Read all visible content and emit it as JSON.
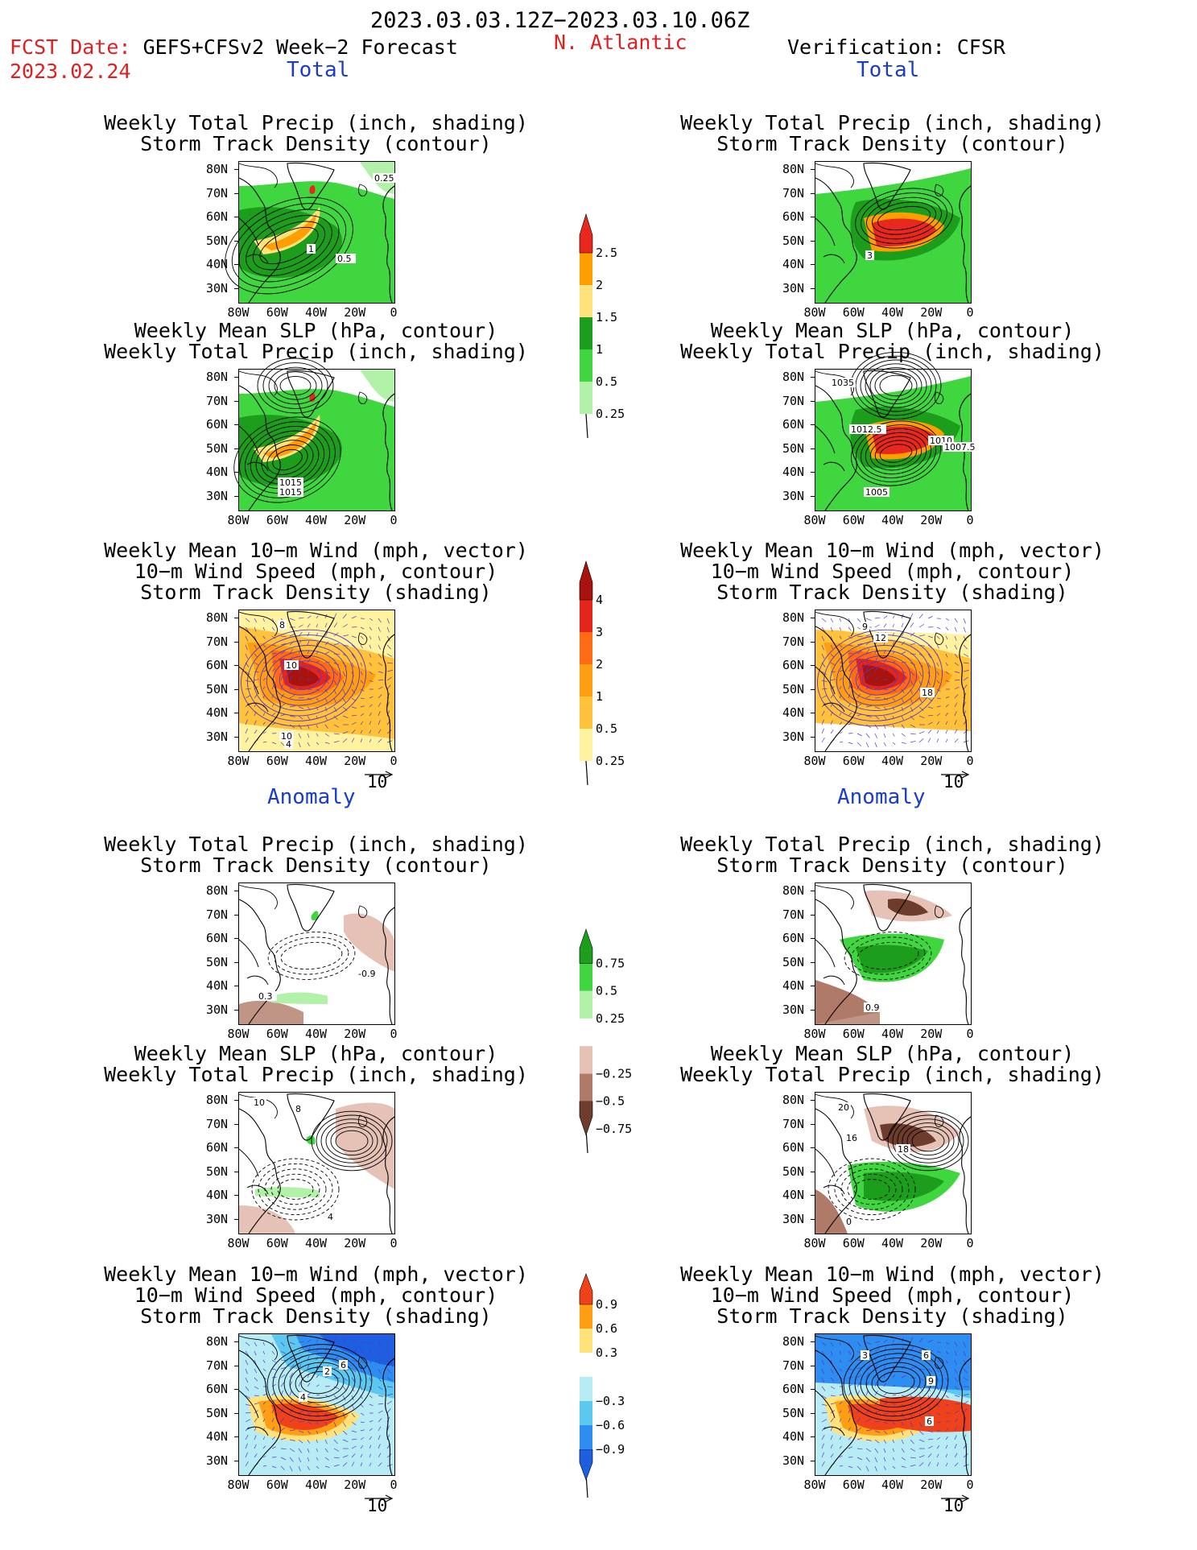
{
  "header": {
    "date_range": "2023.03.03.12Z−2023.03.10.06Z",
    "fcst_label": "FCST Date: ",
    "fcst_model": "GEFS+CFSv2 Week−2 Forecast",
    "fcst_date": "2023.02.24",
    "region": "N. Atlantic",
    "verification": "Verification: CFSR"
  },
  "sections": {
    "total": "Total",
    "anomaly": "Anomaly"
  },
  "titles": {
    "precip_track": [
      "Weekly Total Precip (inch, shading)",
      "Storm Track Density (contour)"
    ],
    "slp_precip": [
      "Weekly Mean SLP (hPa, contour)",
      "Weekly Total Precip (inch, shading)"
    ],
    "wind_track": [
      "Weekly Mean 10−m Wind (mph, vector)",
      "10−m Wind Speed (mph, contour)",
      "Storm Track Density (shading)"
    ]
  },
  "axes": {
    "lat": [
      "80N",
      "70N",
      "60N",
      "50N",
      "40N",
      "30N"
    ],
    "lon": [
      "80W",
      "60W",
      "40W",
      "20W",
      "0"
    ]
  },
  "vector_ref": "10",
  "colorbars": {
    "precip_total": {
      "labels": [
        "2.5",
        "2",
        "1.5",
        "1",
        "0.5",
        "0.25"
      ],
      "colors": [
        "#e8281e",
        "#ff9e00",
        "#ffe37a",
        "#1c9e1c",
        "#3fd63f",
        "#b2f2a8"
      ]
    },
    "track_total": {
      "labels": [
        "4",
        "3",
        "2",
        "1",
        "0.5",
        "0.25"
      ],
      "colors": [
        "#a8130e",
        "#e3251a",
        "#ff6a12",
        "#ff9e12",
        "#ffc23a",
        "#fff3a0"
      ]
    },
    "precip_anom": {
      "labels": [
        "0.75",
        "0.5",
        "0.25",
        "−0.25",
        "−0.5",
        "−0.75"
      ],
      "colors": [
        "#1c9e1c",
        "#3fd63f",
        "#b2f2a8",
        "#ffffff",
        "#e6c2b6",
        "#b07a68",
        "#6e3c2c"
      ]
    },
    "track_anom": {
      "labels": [
        "0.9",
        "0.6",
        "0.3",
        "−0.3",
        "−0.6",
        "−0.9"
      ],
      "colors": [
        "#f0421a",
        "#ff9e12",
        "#ffe37a",
        "#ffffff",
        "#b8ecf4",
        "#5bc8f0",
        "#2e8df0",
        "#1e5ee0"
      ]
    }
  },
  "panel_labels": {
    "l1": [
      "0.25",
      "1",
      "0.5"
    ],
    "r1": [
      "3"
    ],
    "l2": [
      "1015",
      "1015"
    ],
    "r2": [
      "1035",
      "1012.5",
      "1010",
      "1007.5",
      "1005"
    ],
    "l3": [
      "8",
      "10",
      "10",
      "4"
    ],
    "r3": [
      "9",
      "12",
      "18"
    ],
    "l4": [
      "-0.9",
      "0.3"
    ],
    "r4": [
      "0.9"
    ],
    "l5": [
      "10",
      "8",
      "4"
    ],
    "r5": [
      "20",
      "16",
      "18",
      "0"
    ],
    "l6": [
      "2",
      "6",
      "4"
    ],
    "r6": [
      "3",
      "6",
      "9",
      "6"
    ]
  }
}
